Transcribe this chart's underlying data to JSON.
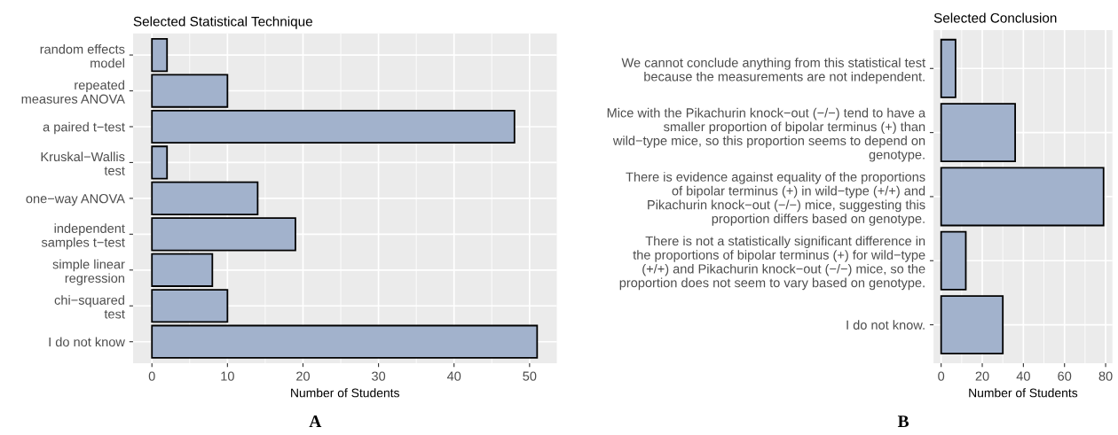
{
  "chart_data": [
    {
      "type": "bar",
      "orientation": "horizontal",
      "title": "Selected Statistical Technique",
      "xlabel": "Number of Students",
      "categories": [
        "random effects\nmodel",
        "repeated\nmeasures ANOVA",
        "a paired t−test",
        "Kruskal−Wallis\ntest",
        "one−way ANOVA",
        "independent\nsamples t−test",
        "simple linear\nregression",
        "chi−squared\ntest",
        "I do not know"
      ],
      "values": [
        2,
        10,
        48,
        2,
        14,
        19,
        8,
        10,
        51
      ],
      "color": "#a2b2cc",
      "xlim": [
        -2.5,
        53.6
      ],
      "xticks": [
        0,
        10,
        20,
        30,
        40,
        50
      ],
      "grid": true,
      "annotations": [
        "A"
      ]
    },
    {
      "type": "bar",
      "orientation": "horizontal",
      "title": "Selected Conclusion",
      "xlabel": "Number of Students",
      "categories": [
        "We cannot conclude anything from this statistical test\nbecause the measurements are not independent.",
        "Mice with the Pikachurin knock−out (−/−) tend to have a\nsmaller proportion of bipolar terminus (+) than\nwild−type mice, so this proportion seems to depend on\ngenotype.",
        "There is evidence against equality of the proportions\nof bipolar terminus (+) in wild−type (+/+) and\nPikachurin knock−out (−/−) mice, suggesting this\nproportion differs based on genotype.",
        "There is not a statistically significant difference in\nthe proportions of bipolar terminus (+) for wild−type\n(+/+) and Pikachurin knock−out (−/−) mice, so the\nproportion does not seem to vary based on genotype.",
        "I do not know."
      ],
      "values": [
        7,
        36,
        79,
        12,
        30
      ],
      "color": "#a2b2cc",
      "xlim": [
        -3.7,
        83.3
      ],
      "xticks": [
        0,
        20,
        40,
        60,
        80
      ],
      "grid": true,
      "annotations": [
        "B"
      ]
    }
  ]
}
